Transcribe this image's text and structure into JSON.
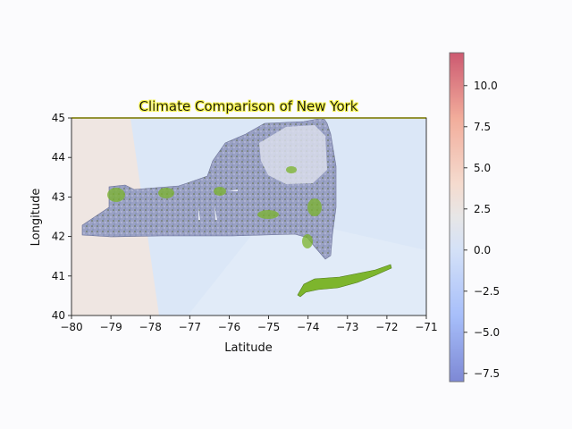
{
  "chart_data": {
    "type": "heatmap",
    "title": "Climate Comparison of New York",
    "xlabel": "Latitude",
    "ylabel": "Longitude",
    "xlim": [
      -80,
      -71
    ],
    "ylim": [
      40,
      45
    ],
    "xticks": [
      -80,
      -79,
      -78,
      -77,
      -76,
      -75,
      -74,
      -73,
      -72,
      -71
    ],
    "yticks": [
      40,
      41,
      42,
      43,
      44,
      45
    ],
    "xtick_labels": [
      "−80",
      "−79",
      "−78",
      "−77",
      "−76",
      "−75",
      "−74",
      "−73",
      "−72",
      "−71"
    ],
    "ytick_labels": [
      "40",
      "41",
      "42",
      "43",
      "44",
      "45"
    ],
    "colorbar": {
      "colormap": "coolwarm",
      "range": [
        -8,
        12
      ],
      "ticks": [
        -7.5,
        -5.0,
        -2.5,
        0.0,
        2.5,
        5.0,
        7.5,
        10.0
      ],
      "tick_labels": [
        "−7.5",
        "−5.0",
        "−2.5",
        "0.0",
        "2.5",
        "5.0",
        "7.5",
        "10.0"
      ]
    },
    "grid": false,
    "colors": {
      "background_warm": "#efe5e0",
      "background_cool": "#d9e6f7",
      "state_fill": "#8c93b8",
      "vegetation": "#6aa52a",
      "title_glow": "#f4f14a"
    }
  }
}
